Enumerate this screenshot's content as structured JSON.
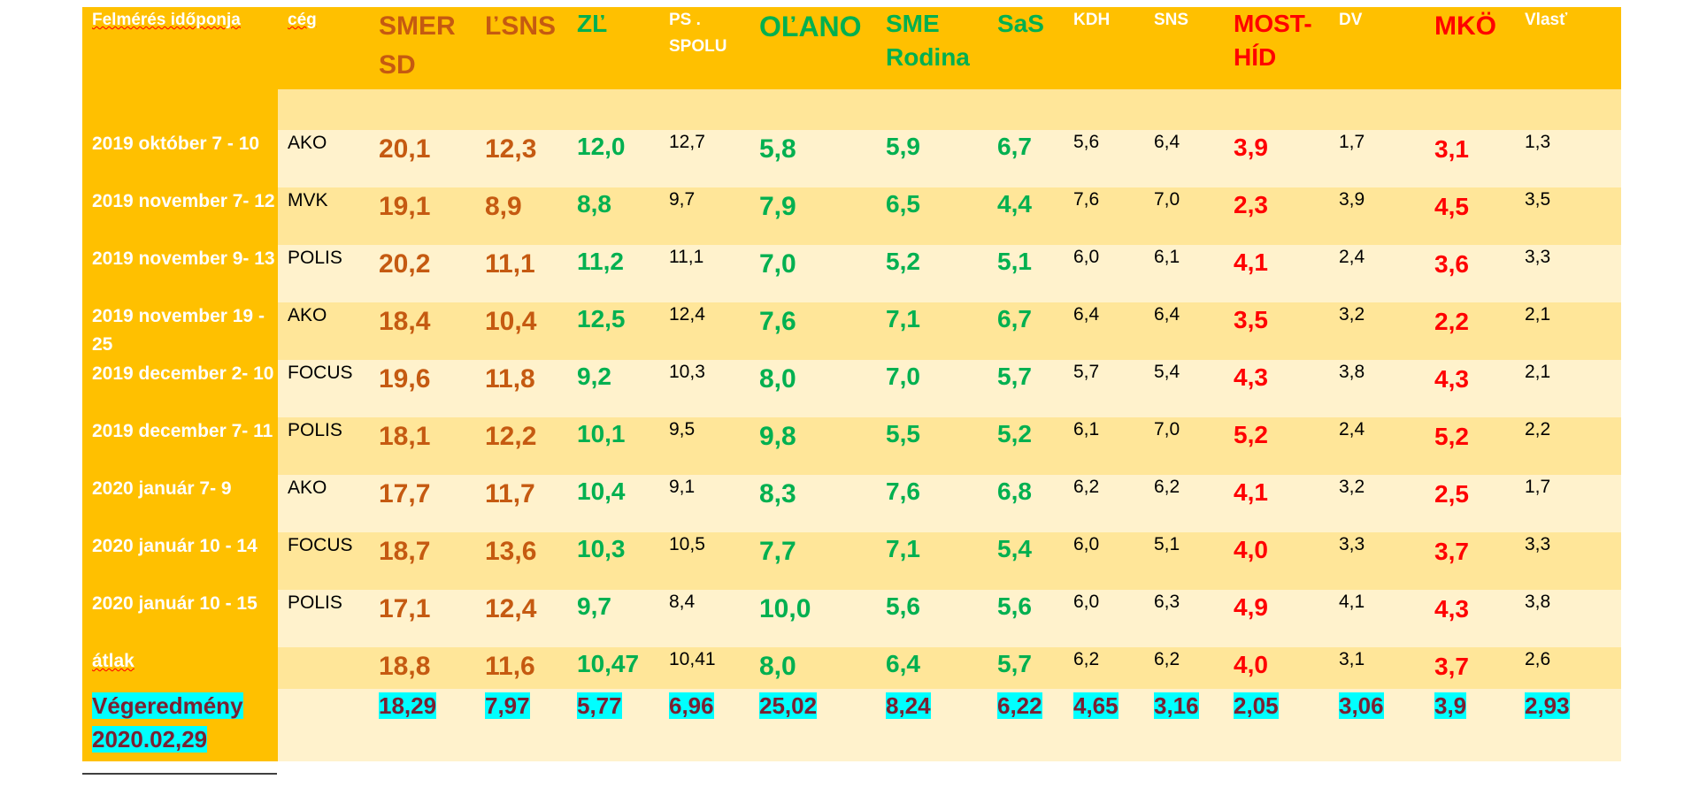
{
  "header": {
    "date": "Felmérés időponja",
    "firm": "cég",
    "parties": [
      "SMER SD",
      "ĽSNS",
      "ZĽ",
      "PS . SPOLU",
      "OĽANO",
      "SME Rodina",
      "SaS",
      "KDH",
      "SNS",
      "MOST-HÍD",
      "DV",
      "MKÖ",
      "Vlasť"
    ]
  },
  "rows": [
    {
      "date": "2019 október  7 - 10",
      "firm": "AKO",
      "v": [
        "20,1",
        "12,3",
        "12,0",
        "12,7",
        "5,8",
        "5,9",
        "6,7",
        "5,6",
        "6,4",
        "3,9",
        "1,7",
        "3,1",
        "1,3"
      ]
    },
    {
      "date": "2019 november 7- 12",
      "firm": "MVK",
      "v": [
        "19,1",
        "8,9",
        "8,8",
        "9,7",
        "7,9",
        "6,5",
        "4,4",
        "7,6",
        "7,0",
        "2,3",
        "3,9",
        "4,5",
        "3,5"
      ]
    },
    {
      "date": "2019 november 9- 13",
      "firm": "POLIS",
      "v": [
        "20,2",
        "11,1",
        "11,2",
        "11,1",
        "7,0",
        "5,2",
        "5,1",
        "6,0",
        "6,1",
        "4,1",
        "2,4",
        "3,6",
        "3,3"
      ]
    },
    {
      "date": "2019 november 19 - 25",
      "firm": "AKO",
      "v": [
        "18,4",
        "10,4",
        "12,5",
        "12,4",
        "7,6",
        "7,1",
        "6,7",
        "6,4",
        "6,4",
        "3,5",
        "3,2",
        "2,2",
        "2,1"
      ]
    },
    {
      "date": "2019 december 2- 10",
      "firm": "FOCUS",
      "v": [
        "19,6",
        "11,8",
        "9,2",
        "10,3",
        "8,0",
        "7,0",
        "5,7",
        "5,7",
        "5,4",
        "4,3",
        "3,8",
        "4,3",
        "2,1"
      ]
    },
    {
      "date": "2019 december 7- 11",
      "firm": "POLIS",
      "v": [
        "18,1",
        "12,2",
        "10,1",
        "9,5",
        "9,8",
        "5,5",
        "5,2",
        "6,1",
        "7,0",
        "5,2",
        "2,4",
        "5,2",
        "2,2"
      ]
    },
    {
      "date": "2020  január 7- 9",
      "firm": "AKO",
      "v": [
        "17,7",
        "11,7",
        "10,4",
        "9,1",
        "8,3",
        "7,6",
        "6,8",
        "6,2",
        "6,2",
        "4,1",
        "3,2",
        "2,5",
        "1,7"
      ]
    },
    {
      "date": "2020  január 10 - 14",
      "firm": "FOCUS",
      "v": [
        "18,7",
        "13,6",
        "10,3",
        "10,5",
        "7,7",
        "7,1",
        "5,4",
        "6,0",
        "5,1",
        "4,0",
        "3,3",
        "3,7",
        "3,3"
      ]
    },
    {
      "date": "2020  január 10 - 15",
      "firm": "POLIS",
      "v": [
        "17,1",
        "12,4",
        "9,7",
        "8,4",
        "10,0",
        "5,6",
        "5,6",
        "6,0",
        "6,3",
        "4,9",
        "4,1",
        "4,3",
        "3,8"
      ]
    }
  ],
  "average": {
    "label": "átlak",
    "firm": "",
    "v": [
      "18,8",
      "11,6",
      "10,47",
      "10,41",
      "8,0",
      "6,4",
      "5,7",
      "6,2",
      "6,2",
      "4,0",
      "3,1",
      "3,7",
      "2,6"
    ]
  },
  "final": {
    "label": "Végeredmény 2020.02,29",
    "firm": "",
    "v": [
      "18,29",
      "7,97",
      "5,77",
      "6,96",
      "25,02",
      "8,24",
      "6,22",
      "4,65",
      "3,16",
      "2,05",
      "3,06",
      "3,9",
      "2,93"
    ]
  },
  "colors": {
    "header_bg": "#ffc000",
    "band_light": "#fff2cc",
    "band_dark": "#ffe699",
    "highlight": "#00ffff",
    "final_text": "#7a2032",
    "brown": "#c55a11",
    "green": "#00b050",
    "red": "#ff0000"
  }
}
